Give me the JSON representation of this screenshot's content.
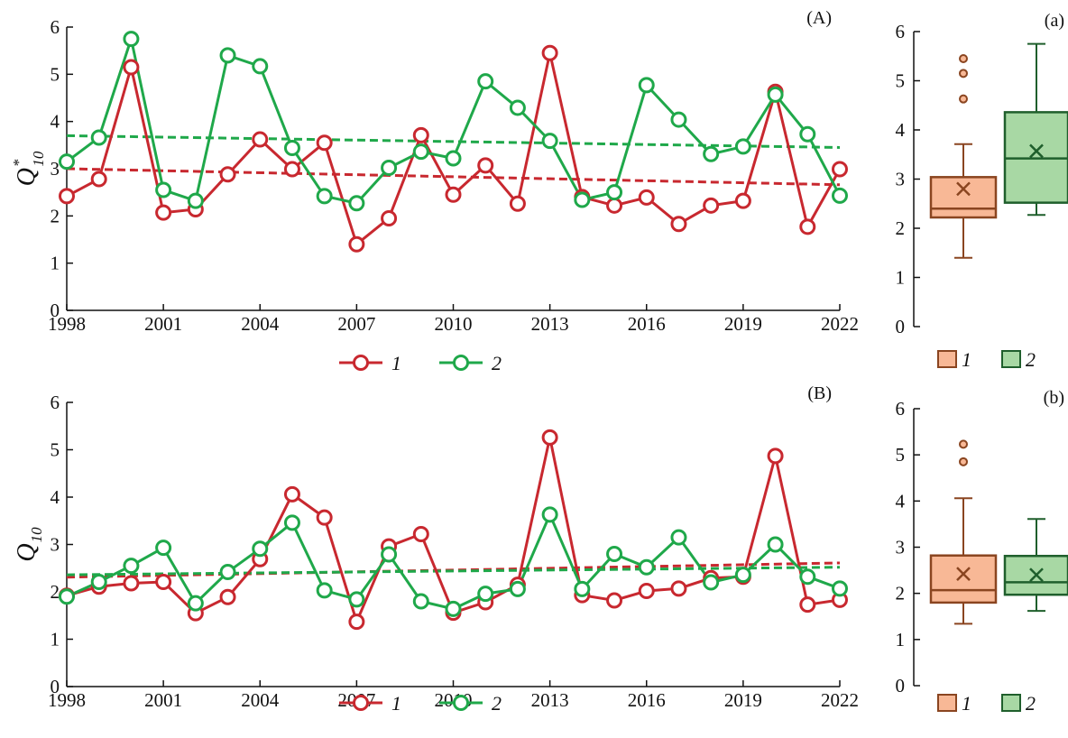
{
  "colors": {
    "series_1": "#c8282f",
    "series_2": "#1fa84a",
    "box_1_fill": "#f8b896",
    "box_1_edge": "#8a4520",
    "box_2_fill": "#a8d8a4",
    "box_2_edge": "#1f5f2c",
    "axis": "#111111"
  },
  "legend": {
    "labels": [
      "1",
      "2"
    ]
  },
  "chart_data": [
    {
      "id": "A",
      "type": "line",
      "panel_label": "(A)",
      "ylabel": "Q",
      "ylabel_sub": "10",
      "ylabel_sup": "*",
      "ylim": [
        0,
        6
      ],
      "yticks": [
        0,
        1,
        2,
        3,
        4,
        5,
        6
      ],
      "xlim": [
        1998,
        2022
      ],
      "xticks": [
        1998,
        2001,
        2004,
        2007,
        2010,
        2013,
        2016,
        2019,
        2022
      ],
      "x": [
        1998,
        1999,
        2000,
        2001,
        2002,
        2003,
        2004,
        2005,
        2006,
        2007,
        2008,
        2009,
        2010,
        2011,
        2012,
        2013,
        2014,
        2015,
        2016,
        2017,
        2018,
        2019,
        2020,
        2021,
        2022
      ],
      "series": [
        {
          "name": "1",
          "values": [
            2.42,
            2.78,
            5.15,
            2.07,
            2.14,
            2.88,
            3.62,
            2.99,
            3.55,
            1.4,
            1.95,
            3.71,
            2.45,
            3.07,
            2.26,
            5.45,
            2.4,
            2.22,
            2.39,
            1.83,
            2.22,
            2.32,
            4.63,
            1.77,
            2.99
          ],
          "trend": [
            3.0,
            2.66
          ]
        },
        {
          "name": "2",
          "values": [
            3.15,
            3.66,
            5.75,
            2.55,
            2.32,
            5.4,
            5.17,
            3.44,
            2.42,
            2.27,
            3.02,
            3.36,
            3.22,
            4.85,
            4.29,
            3.59,
            2.34,
            2.5,
            4.77,
            4.04,
            3.31,
            3.47,
            4.57,
            3.73,
            2.43
          ],
          "trend": [
            3.7,
            3.45
          ]
        }
      ]
    },
    {
      "id": "a",
      "type": "box",
      "panel_label": "(a)",
      "ylim": [
        0,
        6
      ],
      "yticks": [
        0,
        1,
        2,
        3,
        4,
        5,
        6
      ],
      "series": [
        {
          "name": "1",
          "whisker_low": 1.4,
          "q1": 2.22,
          "median": 2.4,
          "q3": 3.04,
          "whisker_high": 3.71,
          "mean": 2.8,
          "outliers": [
            4.63,
            5.15,
            5.45
          ]
        },
        {
          "name": "2",
          "whisker_low": 2.27,
          "q1": 2.52,
          "median": 3.42,
          "q3": 4.36,
          "whisker_high": 5.75,
          "mean": 3.57,
          "outliers": []
        }
      ]
    },
    {
      "id": "B",
      "type": "line",
      "panel_label": "(B)",
      "ylabel": "Q",
      "ylabel_sub": "10",
      "ylim": [
        0,
        6
      ],
      "yticks": [
        0,
        1,
        2,
        3,
        4,
        5,
        6
      ],
      "xlim": [
        1998,
        2022
      ],
      "xticks": [
        1998,
        2001,
        2004,
        2007,
        2010,
        2013,
        2016,
        2019,
        2022
      ],
      "x": [
        1998,
        1999,
        2000,
        2001,
        2002,
        2003,
        2004,
        2005,
        2006,
        2007,
        2008,
        2009,
        2010,
        2011,
        2012,
        2013,
        2014,
        2015,
        2016,
        2017,
        2018,
        2019,
        2020,
        2021,
        2022
      ],
      "series": [
        {
          "name": "1",
          "values": [
            1.92,
            2.11,
            2.18,
            2.21,
            1.55,
            1.89,
            2.69,
            4.06,
            3.57,
            1.37,
            2.96,
            3.22,
            1.56,
            1.78,
            2.15,
            5.26,
            1.93,
            1.82,
            2.02,
            2.07,
            2.29,
            2.32,
            4.87,
            1.73,
            1.83
          ],
          "trend": [
            2.31,
            2.61
          ]
        },
        {
          "name": "2",
          "values": [
            1.9,
            2.21,
            2.55,
            2.93,
            1.76,
            2.42,
            2.91,
            3.46,
            2.03,
            1.84,
            2.79,
            1.8,
            1.64,
            1.96,
            2.06,
            3.63,
            2.06,
            2.8,
            2.52,
            3.15,
            2.2,
            2.36,
            3.0,
            2.32,
            2.07
          ],
          "trend": [
            2.36,
            2.52
          ]
        }
      ]
    },
    {
      "id": "b",
      "type": "box",
      "panel_label": "(b)",
      "ylim": [
        0,
        6
      ],
      "yticks": [
        0,
        1,
        2,
        3,
        4,
        5,
        6
      ],
      "series": [
        {
          "name": "1",
          "whisker_low": 1.34,
          "q1": 1.8,
          "median": 2.07,
          "q3": 2.82,
          "whisker_high": 4.06,
          "mean": 2.42,
          "outliers": [
            4.85,
            5.23
          ]
        },
        {
          "name": "2",
          "whisker_low": 1.62,
          "q1": 1.97,
          "median": 2.24,
          "q3": 2.81,
          "whisker_high": 3.61,
          "mean": 2.4,
          "outliers": []
        }
      ]
    }
  ]
}
